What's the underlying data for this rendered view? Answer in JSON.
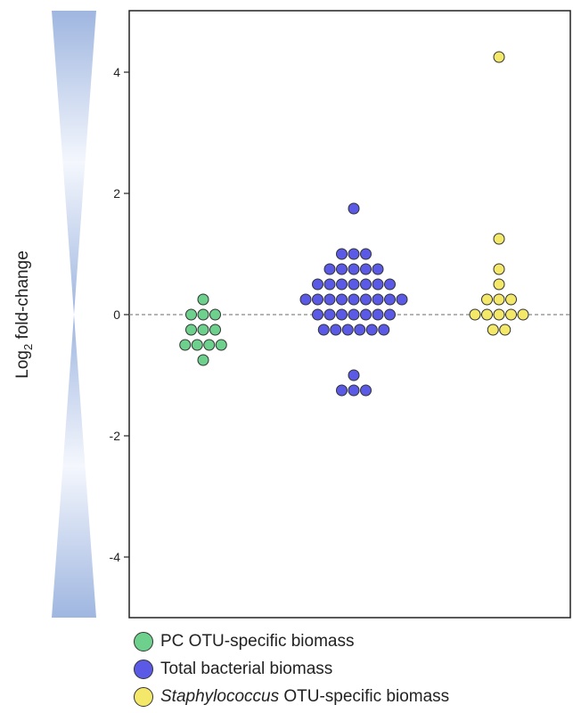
{
  "chart_data": {
    "type": "scatter",
    "ylabel": "Log",
    "ylabel_sub": "2",
    "ylabel_suffix": " fold-change",
    "ylim": [
      -5,
      5
    ],
    "yticks": [
      -4,
      -2,
      0,
      2,
      4
    ],
    "ytick_labels": [
      "-4",
      "-2",
      "0",
      "2",
      "4"
    ],
    "reference_line": 0,
    "grid": false,
    "legend_position": "bottom",
    "categories": [
      "PC OTU-specific biomass",
      "Total bacterial biomass",
      "Staphylococcus OTU-specific biomass"
    ],
    "series": [
      {
        "name": "PC OTU-specific biomass",
        "name_italic": "",
        "name_rest": "PC OTU-specific biomass",
        "color": "#6dd08c",
        "values": [
          0.25,
          0,
          0,
          0,
          -0.25,
          -0.25,
          -0.25,
          -0.5,
          -0.5,
          -0.5,
          -0.5,
          -0.75
        ]
      },
      {
        "name": "Total bacterial biomass",
        "name_italic": "",
        "name_rest": "Total bacterial biomass",
        "color": "#5a5ae6",
        "values": [
          1.75,
          1,
          1,
          1,
          0.75,
          0.75,
          0.75,
          0.75,
          0.75,
          0.5,
          0.5,
          0.5,
          0.5,
          0.5,
          0.5,
          0.5,
          0.25,
          0.25,
          0.25,
          0.25,
          0.25,
          0.25,
          0.25,
          0.25,
          0.25,
          0,
          0,
          0,
          0,
          0,
          0,
          0,
          -0.25,
          -0.25,
          -0.25,
          -0.25,
          -0.25,
          -0.25,
          -1,
          -1.25,
          -1.25,
          -1.25
        ]
      },
      {
        "name": "Staphylococcus OTU-specific biomass",
        "name_italic": "Staphylococcus",
        "name_rest": " OTU-specific biomass",
        "color": "#f4e86a",
        "values": [
          4.25,
          1.25,
          0.75,
          0.5,
          0.25,
          0.25,
          0.25,
          0,
          0,
          0,
          0,
          0,
          -0.25,
          -0.25
        ]
      }
    ]
  }
}
